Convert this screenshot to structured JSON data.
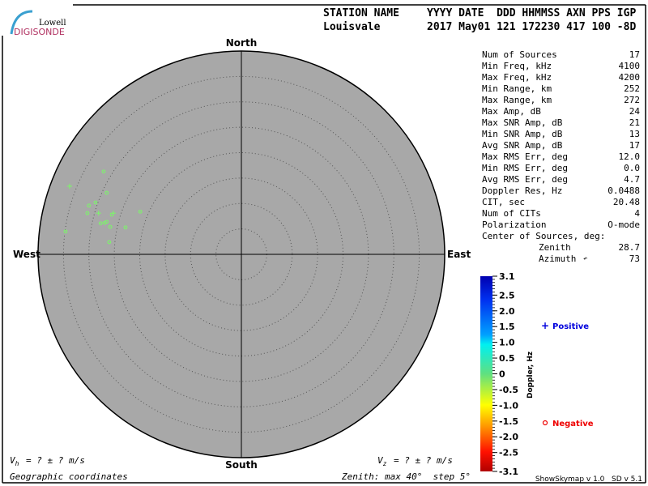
{
  "logo": {
    "line1": "Lowell",
    "line2": "DIGISONDE"
  },
  "header": {
    "station_label": "STATION NAME",
    "columns_label": "YYYY DATE  DDD HHMMSS AXN PPS IGP",
    "station": "Louisvale",
    "values": "2017 May01 121 172230 417 100 -8D"
  },
  "compass": {
    "north": "North",
    "south": "South",
    "east": "East",
    "west": "West"
  },
  "stats": [
    {
      "label": "Num of Sources",
      "value": "17"
    },
    {
      "label": "Min Freq, kHz",
      "value": "4100"
    },
    {
      "label": "Max Freq, kHz",
      "value": "4200"
    },
    {
      "label": "Min Range, km",
      "value": "252"
    },
    {
      "label": "Max Range, km",
      "value": "272"
    },
    {
      "label": "Max Amp, dB",
      "value": "24"
    },
    {
      "label": "Max SNR Amp, dB",
      "value": "21"
    },
    {
      "label": "Min SNR Amp, dB",
      "value": "13"
    },
    {
      "label": "Avg SNR Amp, dB",
      "value": "17"
    },
    {
      "label": "Max RMS Err, deg",
      "value": "12.0"
    },
    {
      "label": "Min RMS Err, deg",
      "value": "0.0"
    },
    {
      "label": "Avg RMS Err, deg",
      "value": "4.7"
    },
    {
      "label": "Doppler Res, Hz",
      "value": "0.0488"
    },
    {
      "label": "CIT, sec",
      "value": "20.48"
    },
    {
      "label": "Num of CITs",
      "value": "4"
    },
    {
      "label": "Polarization",
      "value": "O-mode"
    }
  ],
  "center": {
    "label": "Center of Sources, deg:",
    "zenith_label": "Zenith",
    "zenith": "28.7",
    "azimuth_label": "Azimuth",
    "azimuth": "73"
  },
  "colorbar": {
    "title": "Doppler, Hz",
    "ticks": [
      "3.1",
      "2.5",
      "2.0",
      "1.5",
      "1.0",
      "0.5",
      "0",
      "-0.5",
      "-1.0",
      "-1.5",
      "-2.0",
      "-2.5",
      "-3.1"
    ],
    "tick_values": [
      3.1,
      2.5,
      2.0,
      1.5,
      1.0,
      0.5,
      0,
      -0.5,
      -1.0,
      -1.5,
      -2.0,
      -2.5,
      -3.1
    ],
    "range": [
      -3.1,
      3.1
    ]
  },
  "legend": {
    "positive": "Positive",
    "negative": "Negative",
    "positive_color": "#0000dd",
    "negative_color": "#ee0000"
  },
  "footer": {
    "vh": "= ? ± ? m/s",
    "vz": "= ? ± ? m/s",
    "coords": "Geographic coordinates",
    "zenith_info": "Zenith: max 40°  step 5°",
    "version": "ShowSkymap v 1.0   SD v 5.1"
  },
  "skymap": {
    "zenith_max_deg": 40,
    "zenith_step_deg": 5,
    "disk_color": "#a8a8a8",
    "point_color": "#80ee70",
    "sources_east_north_deg": {
      "negative": [
        [
          -27.1,
          16.3
        ],
        [
          -26.5,
          12.1
        ],
        [
          -28.7,
          10.2
        ],
        [
          -30.0,
          9.6
        ],
        [
          -30.3,
          8.1
        ],
        [
          -25.5,
          7.8
        ],
        [
          -27.7,
          6.1
        ],
        [
          -26.9,
          6.2
        ],
        [
          -26.5,
          6.4
        ],
        [
          -25.8,
          5.4
        ],
        [
          -22.8,
          5.3
        ],
        [
          -19.9,
          8.4
        ],
        [
          -34.6,
          4.5
        ],
        [
          -26.0,
          2.4
        ]
      ],
      "positive": [
        [
          -33.8,
          13.4
        ],
        [
          -28.1,
          8.1
        ],
        [
          -25.2,
          8.1
        ]
      ]
    }
  }
}
